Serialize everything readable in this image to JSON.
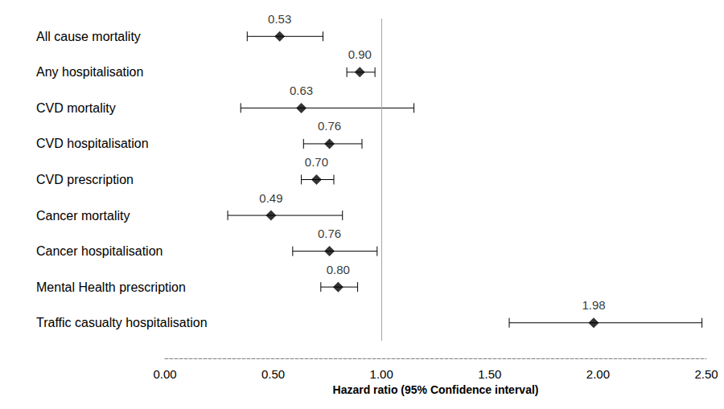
{
  "chart_data": {
    "type": "scatter",
    "orientation": "horizontal",
    "categories": [
      "All cause mortality",
      "Any hospitalisation",
      "CVD mortality",
      "CVD hospitalisation",
      "CVD prescription",
      "Cancer mortality",
      "Cancer hospitalisation",
      "Mental Health prescription",
      "Traffic casualty hospitalisation"
    ],
    "values": [
      0.53,
      0.9,
      0.63,
      0.76,
      0.7,
      0.49,
      0.76,
      0.8,
      1.98
    ],
    "value_labels": [
      "0.53",
      "0.90",
      "0.63",
      "0.76",
      "0.70",
      "0.49",
      "0.76",
      "0.80",
      "1.98"
    ],
    "ci_lower": [
      0.38,
      0.84,
      0.35,
      0.64,
      0.63,
      0.29,
      0.59,
      0.72,
      1.59
    ],
    "ci_upper": [
      0.73,
      0.97,
      1.15,
      0.91,
      0.78,
      0.82,
      0.98,
      0.89,
      2.48
    ],
    "reference_line": 1,
    "xlabel": "Hazard ratio (95% Confidence interval)",
    "xlim": [
      0,
      2.5
    ],
    "xticks": [
      {
        "value": 0,
        "label": "0.00"
      },
      {
        "value": 0.5,
        "label": "0.50"
      },
      {
        "value": 1,
        "label": "1.00"
      },
      {
        "value": 1.5,
        "label": "1.50"
      },
      {
        "value": 2,
        "label": "2.00"
      },
      {
        "value": 2.5,
        "label": "2.50"
      }
    ],
    "marker": "diamond",
    "color": "#000000",
    "data_labels": true,
    "grid": false
  }
}
